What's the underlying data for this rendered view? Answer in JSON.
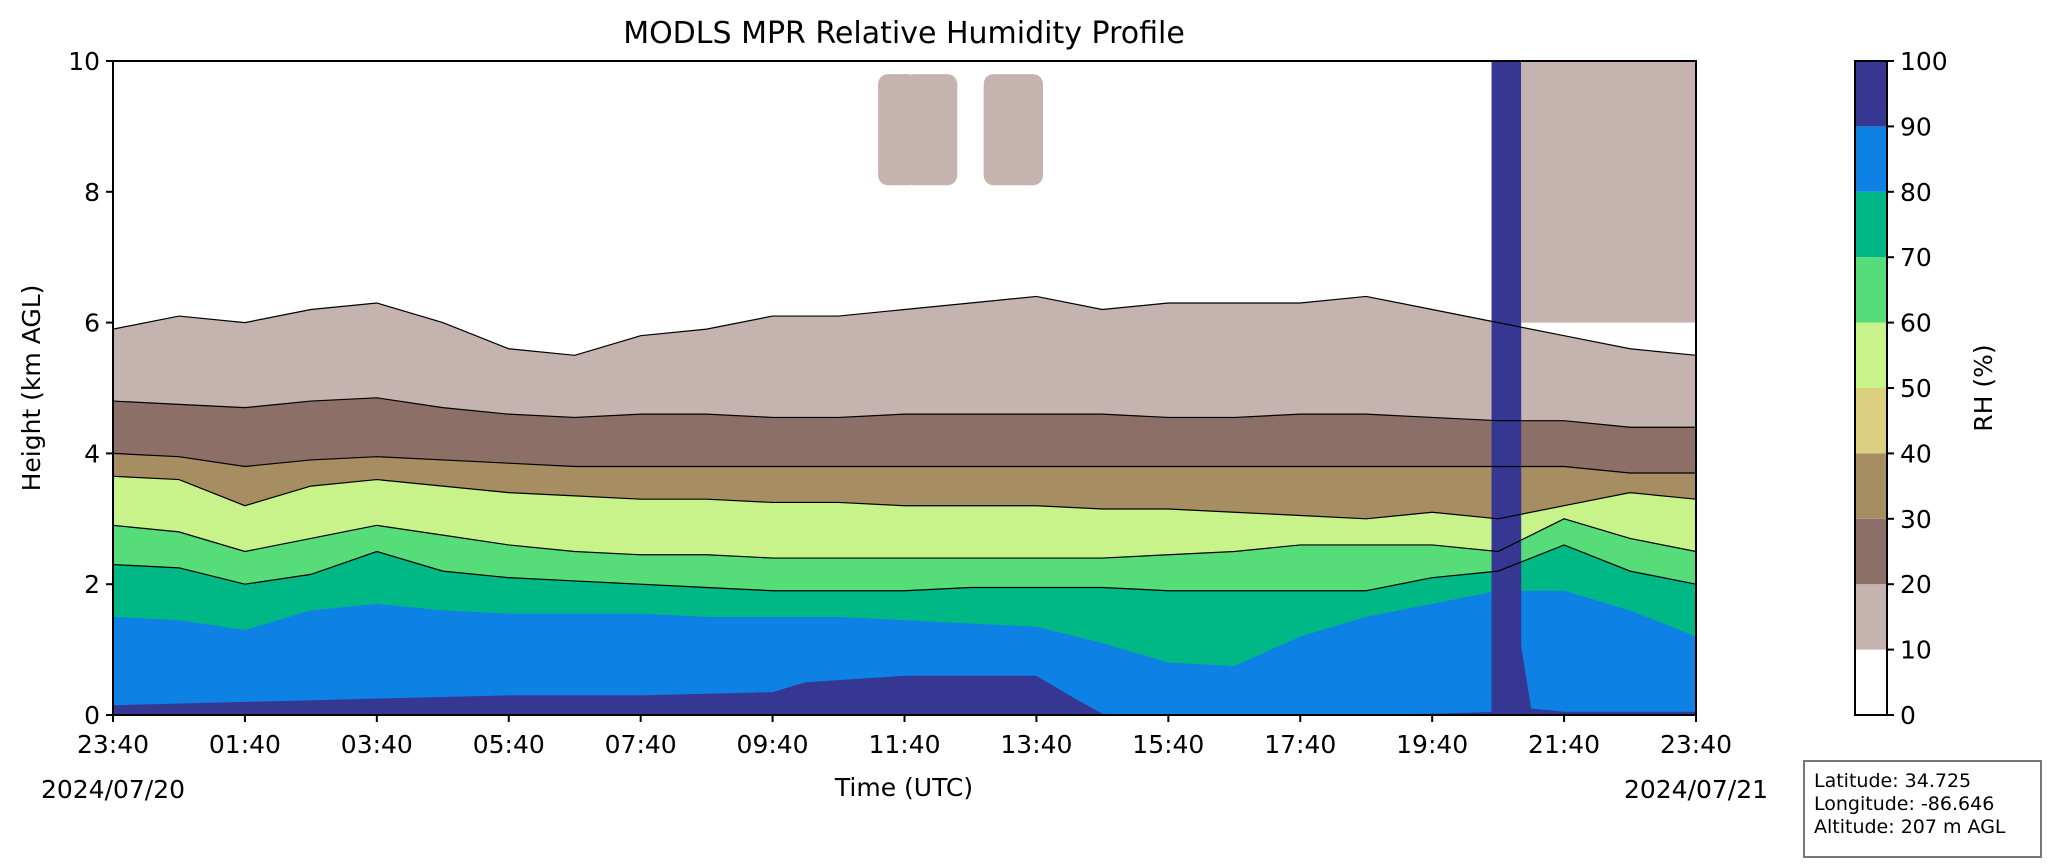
{
  "chart_data": {
    "type": "heatmap",
    "subtype": "filled-contour",
    "title": "MODLS MPR Relative Humidity Profile",
    "xlabel": "Time (UTC)",
    "ylabel": "Height (km AGL)",
    "x_start_date": "2024/07/20",
    "x_end_date": "2024/07/21",
    "xticks": [
      "23:40",
      "01:40",
      "03:40",
      "05:40",
      "07:40",
      "09:40",
      "11:40",
      "13:40",
      "15:40",
      "17:40",
      "19:40",
      "21:40",
      "23:40"
    ],
    "yticks": [
      "0",
      "2",
      "4",
      "6",
      "8",
      "10"
    ],
    "ylim": [
      0,
      10
    ],
    "colorbar": {
      "label": "RH (%)",
      "levels": [
        0,
        10,
        20,
        30,
        40,
        50,
        60,
        70,
        80,
        90,
        100
      ],
      "colors": [
        "#ffffff",
        "#c5b3b0",
        "#8c6f66",
        "#a78d62",
        "#dccf7f",
        "#c8f28a",
        "#56dc78",
        "#00b886",
        "#0e82e4",
        "#363693"
      ]
    },
    "series": [
      {
        "name": "70-80% (top of band)",
        "x": [
          0,
          1,
          2,
          3,
          4,
          5,
          6,
          7,
          8,
          9,
          10,
          11,
          12,
          13,
          14,
          15,
          16,
          17,
          18,
          19,
          20,
          21,
          22,
          23,
          24
        ],
        "height_km": [
          2.3,
          2.25,
          2.0,
          2.15,
          2.5,
          2.2,
          2.1,
          2.05,
          2.0,
          1.95,
          1.9,
          1.9,
          1.9,
          1.95,
          1.95,
          1.95,
          1.9,
          1.9,
          1.9,
          1.9,
          2.1,
          2.2,
          2.6,
          2.2,
          2.0
        ]
      },
      {
        "name": "60-70% (top of band)",
        "x": [
          0,
          1,
          2,
          3,
          4,
          5,
          6,
          7,
          8,
          9,
          10,
          11,
          12,
          13,
          14,
          15,
          16,
          17,
          18,
          19,
          20,
          21,
          22,
          23,
          24
        ],
        "height_km": [
          2.9,
          2.8,
          2.5,
          2.7,
          2.9,
          2.75,
          2.6,
          2.5,
          2.45,
          2.45,
          2.4,
          2.4,
          2.4,
          2.4,
          2.4,
          2.4,
          2.45,
          2.5,
          2.6,
          2.6,
          2.6,
          2.5,
          3.0,
          2.7,
          2.5
        ]
      },
      {
        "name": "50-60% (top of band)",
        "x": [
          0,
          1,
          2,
          3,
          4,
          5,
          6,
          7,
          8,
          9,
          10,
          11,
          12,
          13,
          14,
          15,
          16,
          17,
          18,
          19,
          20,
          21,
          22,
          23,
          24
        ],
        "height_km": [
          3.65,
          3.6,
          3.2,
          3.5,
          3.6,
          3.5,
          3.4,
          3.35,
          3.3,
          3.3,
          3.25,
          3.25,
          3.2,
          3.2,
          3.2,
          3.15,
          3.15,
          3.1,
          3.05,
          3.0,
          3.1,
          3.0,
          3.2,
          3.4,
          3.3
        ]
      },
      {
        "name": "40-50% (top of band)",
        "x": [
          0,
          1,
          2,
          3,
          4,
          5,
          6,
          7,
          8,
          9,
          10,
          11,
          12,
          13,
          14,
          15,
          16,
          17,
          18,
          19,
          20,
          21,
          22,
          23,
          24
        ],
        "height_km": [
          4.0,
          3.95,
          3.8,
          3.9,
          3.95,
          3.9,
          3.85,
          3.8,
          3.8,
          3.8,
          3.8,
          3.8,
          3.8,
          3.8,
          3.8,
          3.8,
          3.8,
          3.8,
          3.8,
          3.8,
          3.8,
          3.8,
          3.8,
          3.7,
          3.7
        ]
      },
      {
        "name": "20-30% (top of band)",
        "x": [
          0,
          1,
          2,
          3,
          4,
          5,
          6,
          7,
          8,
          9,
          10,
          11,
          12,
          13,
          14,
          15,
          16,
          17,
          18,
          19,
          20,
          21,
          22,
          23,
          24
        ],
        "height_km": [
          4.8,
          4.75,
          4.7,
          4.8,
          4.85,
          4.7,
          4.6,
          4.55,
          4.6,
          4.6,
          4.55,
          4.55,
          4.6,
          4.6,
          4.6,
          4.6,
          4.55,
          4.55,
          4.6,
          4.6,
          4.55,
          4.5,
          4.5,
          4.4,
          4.4
        ]
      },
      {
        "name": "10-20% (top of band)",
        "x": [
          0,
          1,
          2,
          3,
          4,
          5,
          6,
          7,
          8,
          9,
          10,
          11,
          12,
          13,
          14,
          15,
          16,
          17,
          18,
          19,
          20,
          21,
          22,
          23,
          24
        ],
        "height_km": [
          5.9,
          6.1,
          6.0,
          6.2,
          6.3,
          6.0,
          5.6,
          5.5,
          5.8,
          5.9,
          6.1,
          6.1,
          6.2,
          6.3,
          6.4,
          6.2,
          6.3,
          6.3,
          6.3,
          6.4,
          6.2,
          6.0,
          5.8,
          5.6,
          5.5
        ]
      }
    ]
  },
  "info_box": {
    "latitude": "Latitude: 34.725",
    "longitude": "Longitude: -86.646",
    "altitude": "Altitude: 207 m AGL"
  }
}
